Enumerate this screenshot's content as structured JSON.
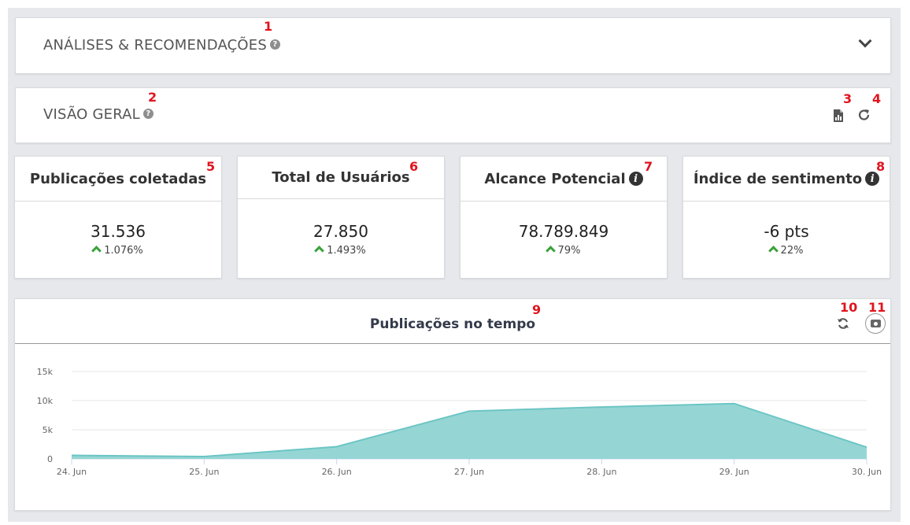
{
  "analises": {
    "title": "ANÁLISES & RECOMENDAÇÕES",
    "help": "?",
    "annotation": "1"
  },
  "visao": {
    "title": "VISÃO GERAL",
    "help": "?",
    "annotation": "2",
    "report_annotation": "3",
    "refresh_annotation": "4"
  },
  "kpis": [
    {
      "title": "Publicações coletadas",
      "info": "",
      "value": "31.536",
      "delta": "1.076%",
      "annotation": "5"
    },
    {
      "title": "Total de Usuários",
      "info": "",
      "value": "27.850",
      "delta": "1.493%",
      "annotation": "6"
    },
    {
      "title": "Alcance Potencial",
      "info": "i",
      "value": "78.789.849",
      "delta": "79%",
      "annotation": "7"
    },
    {
      "title": "Índice de sentimento",
      "info": "i",
      "value": "-6 pts",
      "delta": "22%",
      "annotation": "8"
    }
  ],
  "chart_panel": {
    "title": "Publicações no tempo",
    "annotation": "9",
    "refresh_annotation": "10",
    "camera_annotation": "11"
  },
  "chart_data": {
    "type": "area",
    "title": "Publicações no tempo",
    "categories": [
      "24. Jun",
      "25. Jun",
      "26. Jun",
      "27. Jun",
      "28. Jun",
      "29. Jun",
      "30. Jun"
    ],
    "values": [
      600,
      400,
      2100,
      8200,
      8900,
      9500,
      2000
    ],
    "yticks": [
      "0",
      "5k",
      "10k",
      "15k"
    ],
    "ytick_values": [
      0,
      5000,
      10000,
      15000
    ],
    "ylim": [
      0,
      15000
    ],
    "grid": true,
    "fill_color": "#8fd4d3",
    "line_color": "#6cc5c4"
  }
}
